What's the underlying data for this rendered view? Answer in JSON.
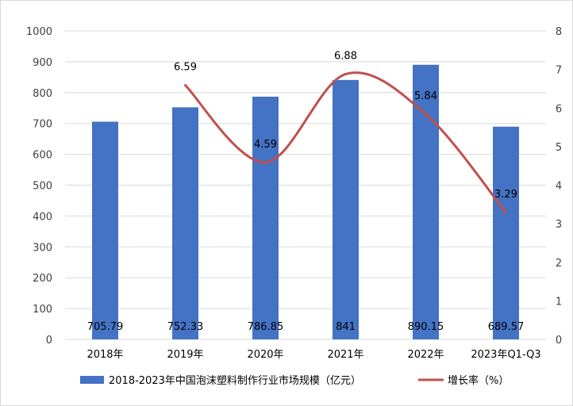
{
  "chart_data": {
    "type": "bar",
    "categories": [
      "2018年",
      "2019年",
      "2020年",
      "2021年",
      "2022年",
      "2023年Q1-Q3"
    ],
    "series": [
      {
        "name": "2018-2023年中国泡沫塑料制作行业市场规模（亿元）",
        "type": "bar",
        "axis": "left",
        "color": "#4472c4",
        "values": [
          705.79,
          752.33,
          786.85,
          841,
          890.15,
          689.57
        ],
        "labels": [
          "705.79",
          "752.33",
          "786.85",
          "841",
          "890.15",
          "689.57"
        ]
      },
      {
        "name": "增长率（%）",
        "type": "line",
        "axis": "right",
        "color": "#c0504d",
        "values": [
          null,
          6.59,
          4.59,
          6.88,
          5.84,
          3.29
        ],
        "labels": [
          "",
          "6.59",
          "4.59",
          "6.88",
          "5.84",
          "3.29"
        ]
      }
    ],
    "y_left": {
      "min": 0,
      "max": 1000,
      "step": 100
    },
    "y_right": {
      "min": 0,
      "max": 8,
      "step": 1
    },
    "grid": true,
    "legend_position": "bottom"
  }
}
